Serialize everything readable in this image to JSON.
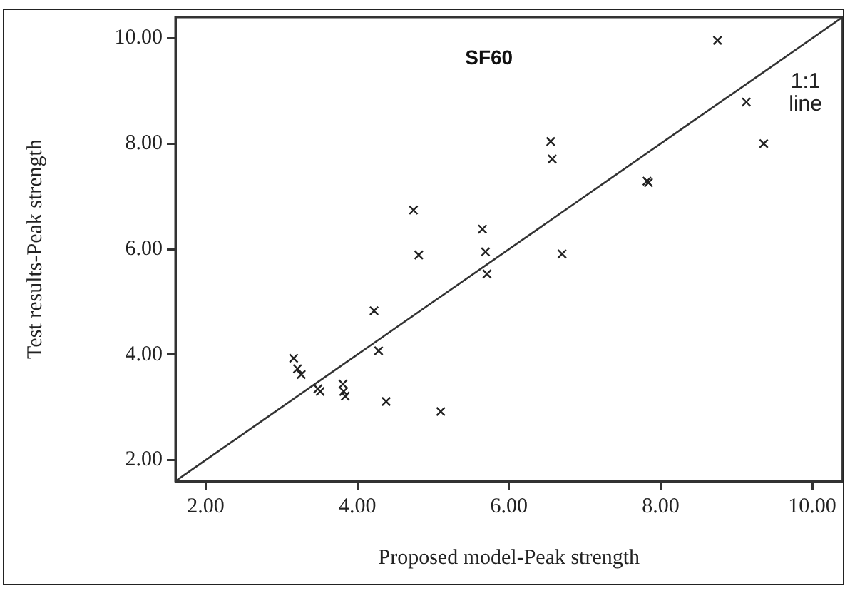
{
  "chart_data": {
    "type": "scatter",
    "title": "SF60",
    "xlabel": "Proposed model-Peak strength",
    "ylabel": "Test results-Peak strength",
    "xlim": [
      1.6,
      10.4
    ],
    "ylim": [
      1.6,
      10.4
    ],
    "xticks": [
      {
        "value": 2,
        "label": "2.00"
      },
      {
        "value": 4,
        "label": "4.00"
      },
      {
        "value": 6,
        "label": "6.00"
      },
      {
        "value": 8,
        "label": "8.00"
      },
      {
        "value": 10,
        "label": "10.00"
      }
    ],
    "yticks": [
      {
        "value": 2,
        "label": "2.00"
      },
      {
        "value": 4,
        "label": "4.00"
      },
      {
        "value": 6,
        "label": "6.00"
      },
      {
        "value": 8,
        "label": "8.00"
      },
      {
        "value": 10,
        "label": "10.00"
      }
    ],
    "marker": "cross",
    "series": [
      {
        "type": "scatter",
        "color": "#222222",
        "x": [
          3.16,
          3.21,
          3.26,
          3.48,
          3.51,
          3.81,
          3.82,
          3.84,
          4.22,
          4.28,
          4.38,
          5.1,
          5.71,
          4.74,
          4.81,
          5.65,
          5.69,
          8.75,
          9.13,
          9.36,
          6.55,
          6.57,
          7.82,
          7.84,
          6.7
        ],
        "values": [
          3.93,
          3.73,
          3.62,
          3.35,
          3.3,
          3.44,
          3.3,
          3.21,
          4.83,
          4.07,
          3.11,
          2.92,
          5.53,
          6.74,
          5.89,
          6.38,
          5.95,
          9.96,
          8.79,
          8.0,
          8.04,
          7.71,
          7.29,
          7.26,
          5.91
        ]
      },
      {
        "type": "line",
        "name": "1:1 line",
        "color": "#333333",
        "marker": "none",
        "line_style": "solid",
        "x": [
          1.6,
          10.4
        ],
        "values": [
          1.6,
          10.4
        ]
      }
    ]
  }
}
